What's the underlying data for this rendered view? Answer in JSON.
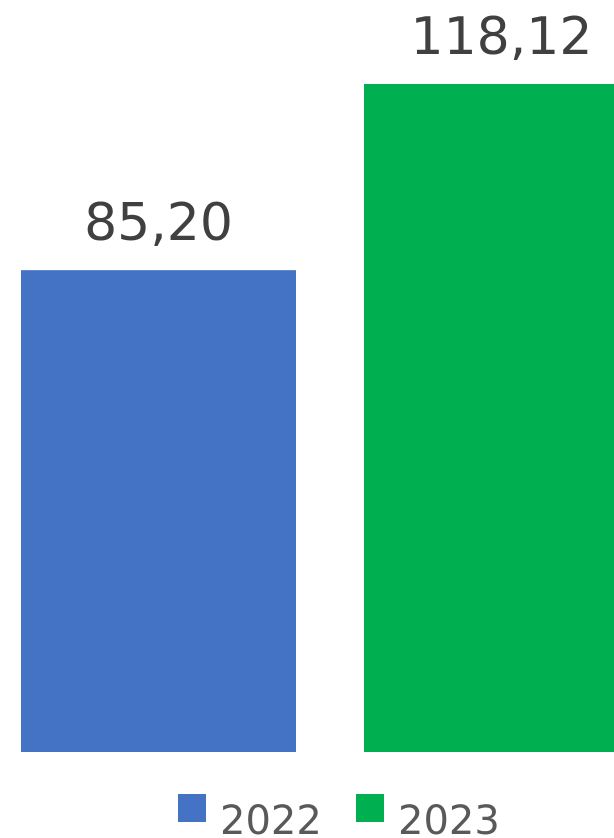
{
  "chart_data": {
    "type": "bar",
    "title": "",
    "xlabel": "",
    "ylabel": "",
    "ylim": [
      0,
      118.12
    ],
    "grid": false,
    "legend_position": "bottom",
    "series": [
      {
        "name": "2022",
        "value": 85.2,
        "label": "85,20",
        "color": "#4472C4"
      },
      {
        "name": "2023",
        "value": 118.12,
        "label": "118,12",
        "color": "#00B050"
      }
    ]
  }
}
